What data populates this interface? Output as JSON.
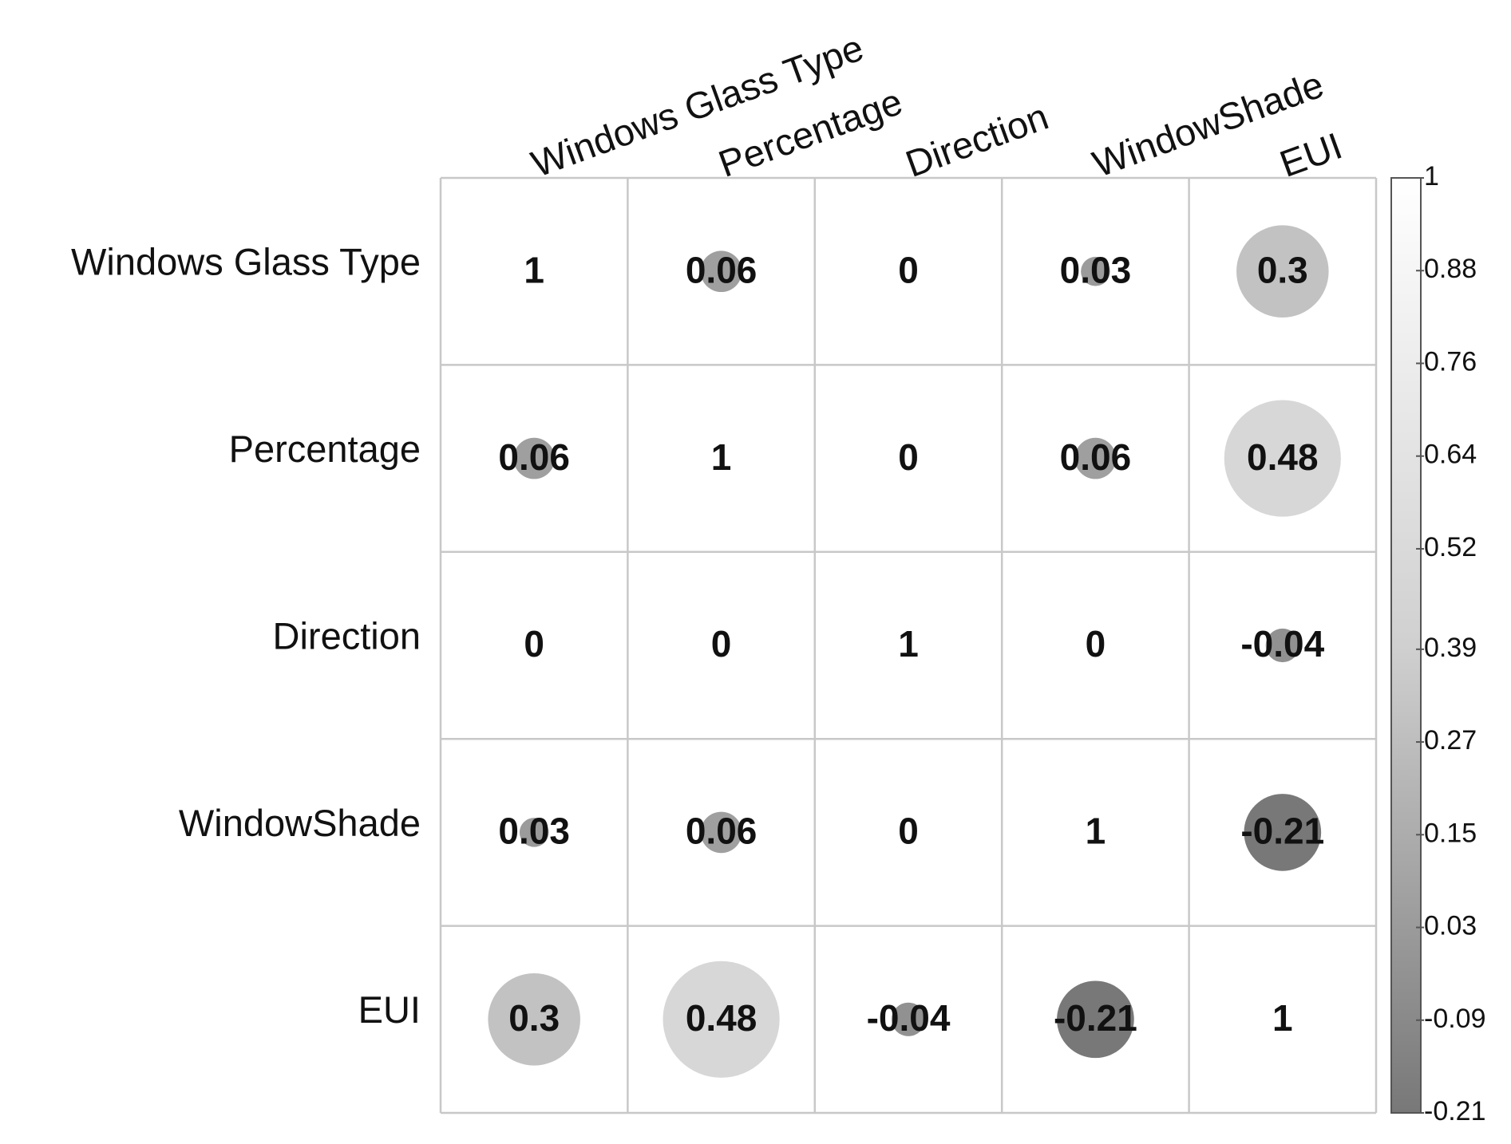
{
  "chart_data": {
    "type": "corrplot",
    "categories": [
      "Windows Glass Type",
      "Percentage",
      "Direction",
      "WindowShade",
      "EUI"
    ],
    "matrix": [
      [
        1,
        0.06,
        0,
        0.03,
        0.3
      ],
      [
        0.06,
        1,
        0,
        0.06,
        0.48
      ],
      [
        0,
        0,
        1,
        0,
        -0.04
      ],
      [
        0.03,
        0.06,
        0,
        1,
        -0.21
      ],
      [
        0.3,
        0.48,
        -0.04,
        -0.21,
        1
      ]
    ],
    "colorbar_lim": [
      -0.21,
      1
    ],
    "colorbar_ticks": [
      1,
      0.88,
      0.76,
      0.64,
      0.52,
      0.39,
      0.27,
      0.15,
      0.03,
      -0.09,
      -0.21
    ],
    "colorscale": [
      "#787878",
      "#d0d0d0",
      "#ffffff"
    ]
  }
}
